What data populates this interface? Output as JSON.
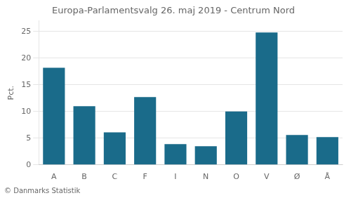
{
  "chart_data": {
    "type": "bar",
    "title": "Europa-Parlamentsvalg 26. maj 2019 - Centrum Nord",
    "categories": [
      "A",
      "B",
      "C",
      "F",
      "I",
      "N",
      "O",
      "V",
      "Ø",
      "Å"
    ],
    "values": [
      18.2,
      11.0,
      6.1,
      12.7,
      3.9,
      3.5,
      10.0,
      24.8,
      5.6,
      5.2
    ],
    "color": "#1a6b8a",
    "ylabel": "Pct.",
    "ylim": [
      0,
      27
    ],
    "yticks": [
      0,
      5,
      10,
      15,
      20,
      25
    ],
    "grid": true,
    "annotations": [
      "© Danmarks Statistik"
    ]
  }
}
